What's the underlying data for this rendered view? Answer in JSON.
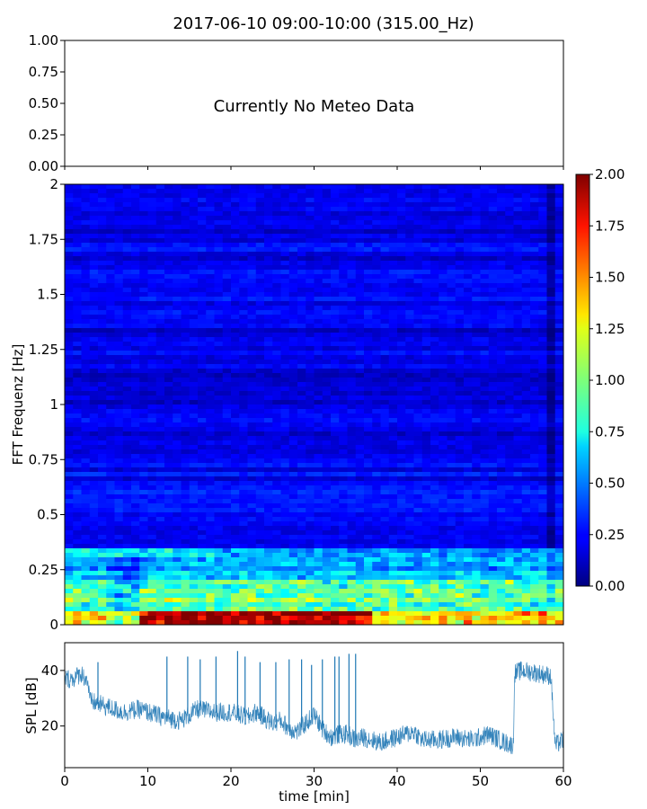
{
  "chart_data": [
    {
      "type": "line",
      "panel": "meteo",
      "title": "2017-06-10 09:00-10:00 (315.00_Hz)",
      "ylim": [
        0,
        1
      ],
      "yticks": [
        "1.00",
        "0.75",
        "0.50",
        "0.25",
        "0.00"
      ],
      "annotation": "Currently No Meteo Data",
      "series": []
    },
    {
      "type": "heatmap",
      "panel": "spectrogram",
      "ylabel": "FFT Frequenz [Hz]",
      "xlim": [
        0,
        60
      ],
      "ylim": [
        0,
        2
      ],
      "yticks": [
        "2",
        "1.75",
        "1.5",
        "1.25",
        "1",
        "0.75",
        "0.5",
        "0.25",
        "0"
      ],
      "colormap": "jet",
      "colorbar": {
        "range": [
          0,
          2
        ],
        "ticks": [
          "2.00",
          "1.75",
          "1.50",
          "1.25",
          "1.00",
          "0.75",
          "0.50",
          "0.25",
          "0.00"
        ]
      },
      "dominant_band_hz": [
        0,
        0.35
      ],
      "high_intensity_minutes": [
        9,
        37
      ]
    },
    {
      "type": "line",
      "panel": "spl",
      "xlabel": "time [min]",
      "ylabel": "SPL [dB]",
      "xlim": [
        0,
        60
      ],
      "ylim": [
        5,
        50
      ],
      "xticks": [
        "0",
        "10",
        "20",
        "30",
        "40",
        "50",
        "60"
      ],
      "yticks": [
        "40",
        "20"
      ],
      "color": "#1f77b4",
      "series": [
        {
          "x": [
            0,
            1,
            2,
            2.8,
            3,
            5,
            7,
            9,
            10,
            12,
            14,
            15,
            16,
            18,
            20,
            21,
            22,
            23,
            24,
            25,
            26,
            27,
            28,
            29,
            30,
            31,
            32,
            33,
            34,
            35,
            36,
            38,
            39,
            40,
            41,
            42,
            43,
            45,
            47,
            49,
            51,
            53,
            54,
            54.1,
            55,
            57,
            58.5,
            59,
            60
          ],
          "y": [
            37,
            37,
            39,
            36,
            29,
            27,
            25,
            26,
            25,
            23,
            22,
            24,
            26,
            25,
            25,
            24,
            23,
            25,
            23,
            21,
            22,
            19,
            18,
            21,
            24,
            19,
            16,
            17,
            17,
            15,
            16,
            14,
            15,
            16,
            17,
            18,
            15,
            15,
            16,
            15,
            17,
            14,
            13,
            39,
            40,
            39,
            38,
            13,
            15
          ]
        }
      ],
      "spikes": [
        {
          "x": 4,
          "y": 43
        },
        {
          "x": 12.3,
          "y": 45
        },
        {
          "x": 14.8,
          "y": 45
        },
        {
          "x": 16.3,
          "y": 44
        },
        {
          "x": 18.2,
          "y": 45
        },
        {
          "x": 20.8,
          "y": 47
        },
        {
          "x": 21.7,
          "y": 45
        },
        {
          "x": 23.5,
          "y": 43
        },
        {
          "x": 25.4,
          "y": 43
        },
        {
          "x": 27,
          "y": 44
        },
        {
          "x": 28.5,
          "y": 44
        },
        {
          "x": 29.7,
          "y": 42
        },
        {
          "x": 31,
          "y": 44
        },
        {
          "x": 32.5,
          "y": 45
        },
        {
          "x": 33,
          "y": 45
        },
        {
          "x": 34.2,
          "y": 46
        },
        {
          "x": 35,
          "y": 46
        }
      ]
    }
  ]
}
